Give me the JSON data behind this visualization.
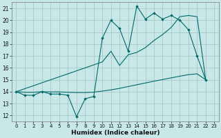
{
  "xlabel": "Humidex (Indice chaleur)",
  "bg_color": "#c8e8e8",
  "grid_color": "#a8c8c8",
  "line_color": "#006868",
  "xlim": [
    -0.5,
    23.5
  ],
  "ylim": [
    11.5,
    21.5
  ],
  "xticks": [
    0,
    1,
    2,
    3,
    4,
    5,
    6,
    7,
    8,
    9,
    10,
    11,
    12,
    13,
    14,
    15,
    16,
    17,
    18,
    19,
    20,
    21,
    22,
    23
  ],
  "yticks": [
    12,
    13,
    14,
    15,
    16,
    17,
    18,
    19,
    20,
    21
  ],
  "s1_x": [
    0,
    1,
    2,
    3,
    4,
    5,
    6,
    7,
    8,
    9,
    10,
    11,
    12,
    13,
    14,
    15,
    16,
    17,
    18,
    19,
    20,
    21,
    22
  ],
  "s1_y": [
    14.0,
    13.7,
    13.7,
    14.0,
    13.8,
    13.8,
    13.7,
    11.9,
    13.4,
    13.6,
    18.5,
    20.0,
    19.3,
    17.4,
    21.2,
    20.1,
    20.6,
    20.1,
    20.4,
    20.0,
    19.2,
    17.0,
    15.0
  ],
  "s2_x": [
    0,
    1,
    2,
    3,
    4,
    5,
    6,
    7,
    8,
    9,
    10,
    11,
    12,
    13,
    14,
    15,
    16,
    17,
    18,
    19,
    20,
    21,
    22
  ],
  "s2_y": [
    14.0,
    13.95,
    13.95,
    14.0,
    13.98,
    13.98,
    13.95,
    13.93,
    13.93,
    13.96,
    14.05,
    14.15,
    14.28,
    14.43,
    14.58,
    14.73,
    14.88,
    15.02,
    15.16,
    15.3,
    15.43,
    15.5,
    15.0
  ],
  "s3_x": [
    0,
    10,
    11,
    12,
    13,
    14,
    15,
    16,
    17,
    18,
    19,
    20,
    21,
    22
  ],
  "s3_y": [
    14.0,
    16.5,
    17.4,
    16.2,
    17.1,
    17.3,
    17.7,
    18.3,
    18.8,
    19.4,
    20.3,
    20.4,
    20.3,
    15.0
  ]
}
